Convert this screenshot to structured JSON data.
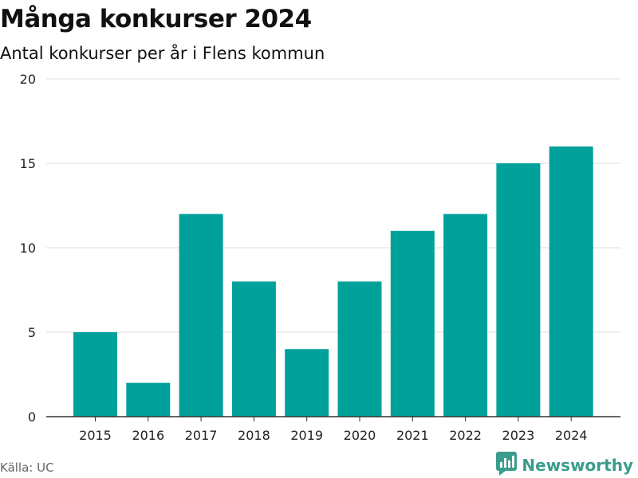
{
  "chart_data": {
    "type": "bar",
    "title": "Många konkurser 2024",
    "subtitle": "Antal konkurser per år i Flens kommun",
    "categories": [
      "2015",
      "2016",
      "2017",
      "2018",
      "2019",
      "2020",
      "2021",
      "2022",
      "2023",
      "2024"
    ],
    "values": [
      5,
      2,
      12,
      8,
      4,
      8,
      11,
      12,
      15,
      16
    ],
    "ylim": [
      0,
      20
    ],
    "yticks": [
      "0",
      "5",
      "10",
      "15",
      "20"
    ],
    "grid": true,
    "legend": "none",
    "bar_color": "#00a19a"
  },
  "source": "Källa: UC",
  "brand": {
    "name": "Newsworthy",
    "icon": "newsworthy-logo-icon",
    "color": "#3a9c8c"
  }
}
